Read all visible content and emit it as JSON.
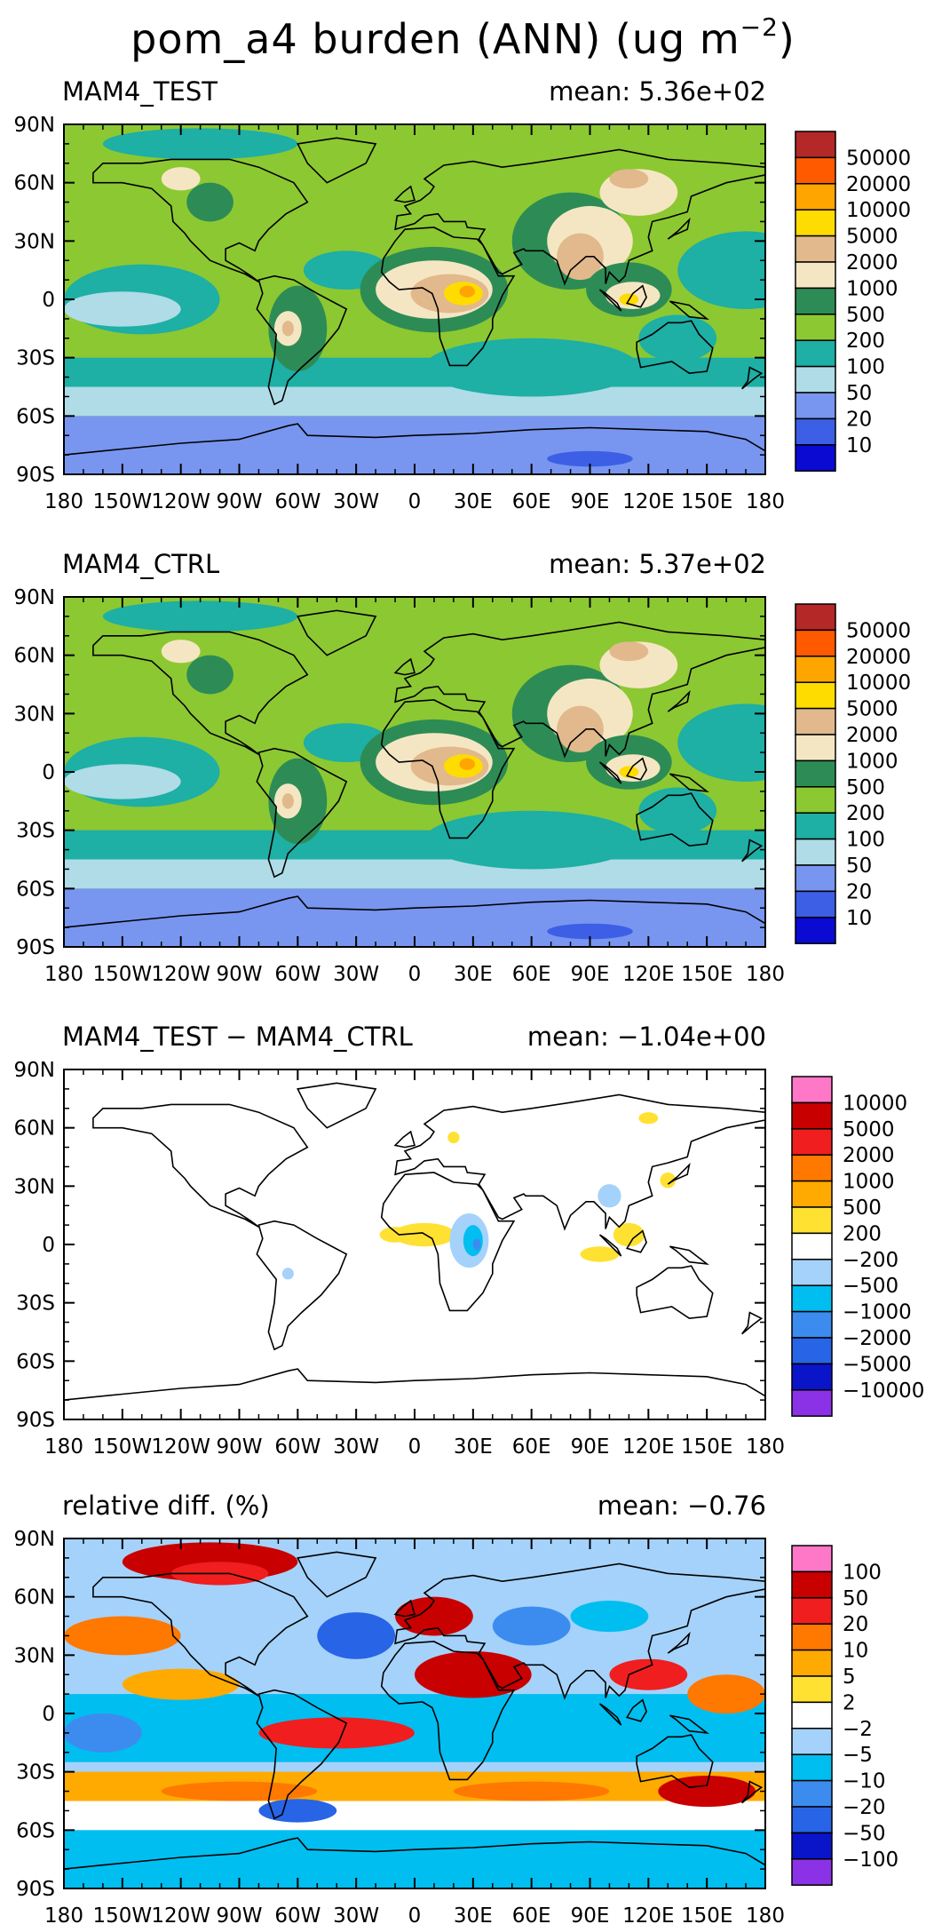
{
  "title": {
    "main": "pom_a4 burden (ANN) (ug m",
    "exponent": "−2",
    "close": ")"
  },
  "lat_labels": [
    "90N",
    "60N",
    "30N",
    "0",
    "30S",
    "60S",
    "90S"
  ],
  "lon_labels": [
    "180",
    "150W",
    "120W",
    "90W",
    "60W",
    "30W",
    "0",
    "30E",
    "60E",
    "90E",
    "120E",
    "150E",
    "180"
  ],
  "colors": {
    "abs": [
      "#0a0ad2",
      "#3c5fe6",
      "#7896f0",
      "#afdce6",
      "#1eafa5",
      "#8cc832",
      "#2d8c55",
      "#f5e6c3",
      "#e1b98c",
      "#ffdc00",
      "#ffa500",
      "#ff5a00",
      "#b42828"
    ],
    "diff": [
      "#8c32e6",
      "#0a14c8",
      "#2864e6",
      "#3c8cf0",
      "#00bef0",
      "#a5d2fa",
      "#ffffff",
      "#ffe132",
      "#ffaa00",
      "#ff7800",
      "#f01e1e",
      "#c80000",
      "#ff78c8"
    ]
  },
  "chart_data": [
    {
      "type": "heatmap",
      "title": "MAM4_TEST",
      "mean_label": "mean: 5.36e+02",
      "mean": 536,
      "colorbar": [
        "50000",
        "20000",
        "10000",
        "5000",
        "2000",
        "1000",
        "500",
        "200",
        "100",
        "50",
        "20",
        "10"
      ],
      "lat_range": [
        -90,
        90
      ],
      "lon_range": [
        -180,
        180
      ]
    },
    {
      "type": "heatmap",
      "title": "MAM4_CTRL",
      "mean_label": "mean: 5.37e+02",
      "mean": 537,
      "colorbar": [
        "50000",
        "20000",
        "10000",
        "5000",
        "2000",
        "1000",
        "500",
        "200",
        "100",
        "50",
        "20",
        "10"
      ],
      "lat_range": [
        -90,
        90
      ],
      "lon_range": [
        -180,
        180
      ]
    },
    {
      "type": "heatmap",
      "title": "MAM4_TEST − MAM4_CTRL",
      "mean_label": "mean: −1.04e+00",
      "mean": -1.04,
      "colorbar": [
        "10000",
        "5000",
        "2000",
        "1000",
        "500",
        "200",
        "−200",
        "−500",
        "−1000",
        "−2000",
        "−5000",
        "−10000"
      ],
      "lat_range": [
        -90,
        90
      ],
      "lon_range": [
        -180,
        180
      ]
    },
    {
      "type": "heatmap",
      "title": "relative diff. (%)",
      "mean_label": "mean: −0.76",
      "mean": -0.76,
      "colorbar": [
        "100",
        "50",
        "20",
        "10",
        "5",
        "2",
        "−2",
        "−5",
        "−10",
        "−20",
        "−50",
        "−100"
      ],
      "lat_range": [
        -90,
        90
      ],
      "lon_range": [
        -180,
        180
      ]
    }
  ]
}
